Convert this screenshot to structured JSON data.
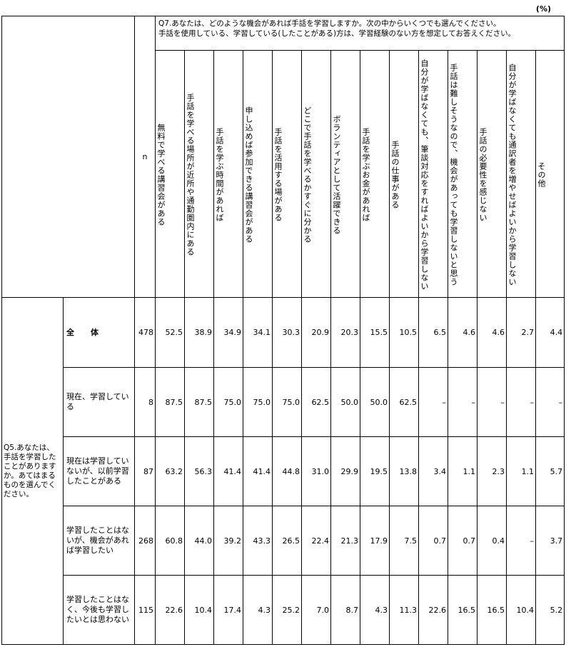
{
  "unit_label": "(%)",
  "q7_text_line1": "Q7.あなたは、どのような機会があれば手話を学習しますか。次の中からいくつでも選んでください。",
  "q7_text_line2": "手話を使用している、学習している(したことがある)方は、学習経験のない方を想定してお答えください。",
  "n_label": "n",
  "q5_label": "Q5.あなたは、手話を学習したことがありますか。あてはまるものを選んでください。",
  "columns": [
    "無料で学べる講習会がある",
    "手話を学べる場所が近所や通勤圏内にある",
    "手話を学ぶ時間があれば",
    "申し込めば参加できる講習会がある",
    "手話を活用する場がある",
    "どこで手話を学べるかすぐに分かる",
    "ボランティアとして活躍できる",
    "手話を学ぶお金があれば",
    "手話の仕事がある",
    "自分が学ばなくても、筆談対応をすればよいから学習しない",
    "手話は難しそうなので、機会があっても学習しないと思う",
    "手話の必要性を感じない",
    "自分が学ばなくても通訳者を増やせばよいから学習しない",
    "その他"
  ],
  "rows": [
    {
      "label": "全　体",
      "n": "478",
      "values": [
        "52.5",
        "38.9",
        "34.9",
        "34.1",
        "30.3",
        "20.9",
        "20.3",
        "15.5",
        "10.5",
        "6.5",
        "4.6",
        "4.6",
        "2.7",
        "4.4"
      ]
    },
    {
      "label": "現在、学習している",
      "n": "8",
      "values": [
        "87.5",
        "87.5",
        "75.0",
        "75.0",
        "75.0",
        "62.5",
        "50.0",
        "50.0",
        "62.5",
        "–",
        "–",
        "–",
        "–",
        "–"
      ]
    },
    {
      "label": "現在は学習していないが、以前学習したことがある",
      "n": "87",
      "values": [
        "63.2",
        "56.3",
        "41.4",
        "41.4",
        "44.8",
        "31.0",
        "29.9",
        "19.5",
        "13.8",
        "3.4",
        "1.1",
        "2.3",
        "1.1",
        "5.7"
      ]
    },
    {
      "label": "学習したことはないが、機会があれば学習したい",
      "n": "268",
      "values": [
        "60.8",
        "44.0",
        "39.2",
        "43.3",
        "26.5",
        "22.4",
        "21.3",
        "17.9",
        "7.5",
        "0.7",
        "0.7",
        "0.4",
        "–",
        "3.7"
      ]
    },
    {
      "label": "学習したことはなく、今後も学習したいとは思わない",
      "n": "115",
      "values": [
        "22.6",
        "10.4",
        "17.4",
        "4.3",
        "25.2",
        "7.0",
        "8.7",
        "4.3",
        "11.3",
        "22.6",
        "16.5",
        "16.5",
        "10.4",
        "5.2"
      ]
    }
  ]
}
